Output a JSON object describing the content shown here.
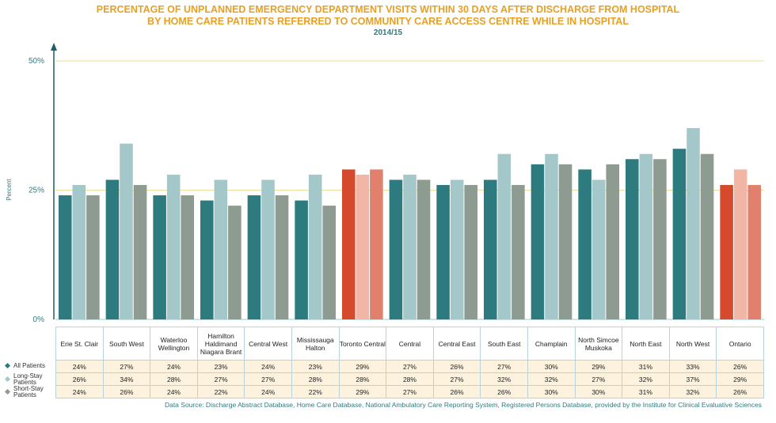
{
  "chart_data": {
    "type": "bar",
    "title": [
      "PERCENTAGE OF UNPLANNED EMERGENCY DEPARTMENT VISITS WITHIN 30 DAYS AFTER DISCHARGE FROM HOSPITAL",
      "BY HOME CARE PATIENTS REFERRED TO COMMUNITY CARE ACCESS CENTRE WHILE IN HOSPITAL"
    ],
    "subtitle": "2014/15",
    "y_axis_label": "Percent",
    "categories": [
      "Erie St. Clair",
      "South West",
      "Waterloo Wellington",
      "Hamilton Haldimand Niagara Brant",
      "Central West",
      "Mississauga Halton",
      "Toronto Central",
      "Central",
      "Central East",
      "South East",
      "Champlain",
      "North Simcoe Muskoka",
      "North East",
      "North West",
      "Ontario"
    ],
    "highlighted_categories": [
      "Toronto Central",
      "Ontario"
    ],
    "series": [
      {
        "name": "All Patients",
        "color": "#2e7b7f",
        "highlight_color": "#d5492c",
        "values": [
          24,
          27,
          24,
          23,
          24,
          23,
          29,
          27,
          26,
          27,
          30,
          29,
          31,
          33,
          26
        ],
        "value_labels": [
          "24%",
          "27%",
          "24%",
          "23%",
          "24%",
          "23%",
          "29%",
          "27%",
          "26%",
          "27%",
          "30%",
          "29%",
          "31%",
          "33%",
          "26%"
        ]
      },
      {
        "name": "Long-Stay Patients",
        "color": "#a4c8ca",
        "highlight_color": "#f1b6a6",
        "values": [
          26,
          34,
          28,
          27,
          27,
          28,
          28,
          28,
          27,
          32,
          32,
          27,
          32,
          37,
          29
        ],
        "value_labels": [
          "26%",
          "34%",
          "28%",
          "27%",
          "27%",
          "28%",
          "28%",
          "28%",
          "27%",
          "32%",
          "32%",
          "27%",
          "32%",
          "37%",
          "29%"
        ]
      },
      {
        "name": "Short-Stay Patients",
        "color": "#8e9b90",
        "highlight_color": "#e1806d",
        "values": [
          24,
          26,
          24,
          22,
          24,
          22,
          29,
          27,
          26,
          26,
          30,
          30,
          31,
          32,
          26
        ],
        "value_labels": [
          "24%",
          "26%",
          "24%",
          "22%",
          "24%",
          "22%",
          "29%",
          "27%",
          "26%",
          "26%",
          "30%",
          "30%",
          "31%",
          "32%",
          "26%"
        ]
      }
    ],
    "ylim": [
      0,
      50
    ],
    "yticks": [
      {
        "value": 0,
        "label": "0%"
      },
      {
        "value": 25,
        "label": "25%"
      },
      {
        "value": 50,
        "label": "50%"
      }
    ],
    "grid": true,
    "source": "Data Source: Discharge Abstract Database, Home Care Database, National Ambulatory Care Reporting System, Registered Persons Database, provided by the Institute for Clinical Evaluative Sciences"
  }
}
